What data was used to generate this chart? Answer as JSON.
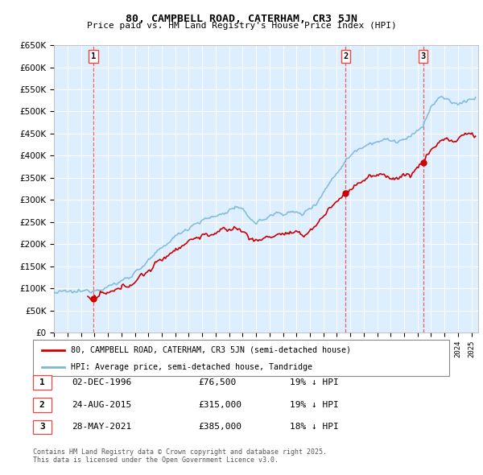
{
  "title": "80, CAMPBELL ROAD, CATERHAM, CR3 5JN",
  "subtitle": "Price paid vs. HM Land Registry's House Price Index (HPI)",
  "ylim": [
    0,
    650000
  ],
  "yticks": [
    0,
    50000,
    100000,
    150000,
    200000,
    250000,
    300000,
    350000,
    400000,
    450000,
    500000,
    550000,
    600000,
    650000
  ],
  "xlim_start": 1994.0,
  "xlim_end": 2025.5,
  "hpi_color": "#7ab8d9",
  "price_color": "#cc0000",
  "bg_color": "#ddeeff",
  "grid_color": "#ffffff",
  "transactions": [
    {
      "label": "1",
      "date_num": 1996.92,
      "price": 76500
    },
    {
      "label": "2",
      "date_num": 2015.65,
      "price": 315000
    },
    {
      "label": "3",
      "date_num": 2021.42,
      "price": 385000
    }
  ],
  "transaction_details": [
    {
      "num": "1",
      "date": "02-DEC-1996",
      "price": "£76,500",
      "hpi_diff": "19% ↓ HPI"
    },
    {
      "num": "2",
      "date": "24-AUG-2015",
      "price": "£315,000",
      "hpi_diff": "19% ↓ HPI"
    },
    {
      "num": "3",
      "date": "28-MAY-2021",
      "price": "£385,000",
      "hpi_diff": "18% ↓ HPI"
    }
  ],
  "legend_line1": "80, CAMPBELL ROAD, CATERHAM, CR3 5JN (semi-detached house)",
  "legend_line2": "HPI: Average price, semi-detached house, Tandridge",
  "footnote": "Contains HM Land Registry data © Crown copyright and database right 2025.\nThis data is licensed under the Open Government Licence v3.0.",
  "vline_dates": [
    1996.92,
    2015.65,
    2021.42
  ],
  "vline_color": "#ee4444"
}
